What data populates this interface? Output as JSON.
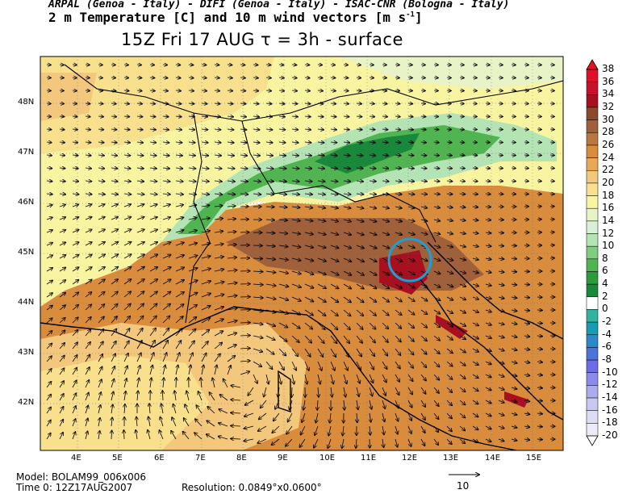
{
  "header": {
    "institutions": "ARPAL (Genoa - Italy)  -  DIFI (Genoa - Italy)  -  ISAC-CNR (Bologna - Italy)",
    "variable": "2 m Temperature [C] and 10 m wind vectors [m s",
    "variable_exp": "-1",
    "variable_close": "]",
    "time_title": "15Z Fri 17 AUG  τ = 3h  -  surface"
  },
  "footer": {
    "model": "Model: BOLAM99_006x006",
    "time0": "Time 0: 12Z17AUG2007",
    "resolution": "Resolution: 0.0849°x0.0600°",
    "vector_ref": "10"
  },
  "axes": {
    "x_ticks": [
      "4E",
      "5E",
      "6E",
      "7E",
      "8E",
      "9E",
      "10E",
      "11E",
      "12E",
      "13E",
      "14E",
      "15E"
    ],
    "y_ticks": [
      "42N",
      "43N",
      "44N",
      "45N",
      "46N",
      "47N",
      "48N"
    ]
  },
  "colorbar": {
    "levels": [
      "38",
      "36",
      "34",
      "32",
      "30",
      "28",
      "26",
      "24",
      "22",
      "20",
      "18",
      "16",
      "14",
      "12",
      "10",
      "8",
      "6",
      "4",
      "2",
      "0",
      "-2",
      "-4",
      "-6",
      "-8",
      "-10",
      "-12",
      "-14",
      "-16",
      "-18",
      "-20"
    ],
    "colors": [
      "#e0102a",
      "#c8102a",
      "#a81020",
      "#8c4a2a",
      "#a0603a",
      "#b87840",
      "#d88c3c",
      "#e8a858",
      "#f4c87c",
      "#f8e08c",
      "#f8f4a0",
      "#e8f4c8",
      "#d8f0d8",
      "#b4e4b4",
      "#80cc80",
      "#50b450",
      "#2a9c3a",
      "#18883a",
      "#ffffff",
      "#30b4a0",
      "#189cb4",
      "#2c88c8",
      "#4c74d8",
      "#6c6ce4",
      "#8c8ce8",
      "#acacec",
      "#c8c8f0",
      "#dcdcf4",
      "#ececf8"
    ]
  },
  "annotation": {
    "circle_color": "#1aa0d8"
  }
}
